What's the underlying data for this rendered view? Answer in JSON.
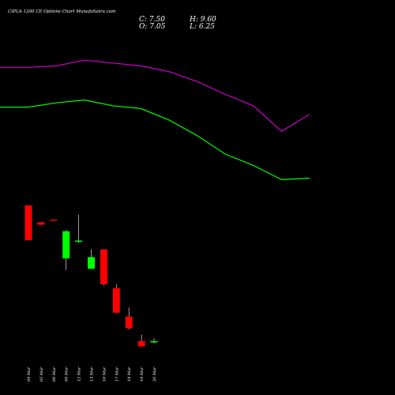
{
  "header": {
    "title": "CIPLA 1200 CE Options Chart MunafaSutra.com",
    "close": "C: 7.50",
    "open": "O: 7.05",
    "high": "H: 9.60",
    "low": "L: 6.25"
  },
  "colors": {
    "background": "#000000",
    "up": "#00ff00",
    "down": "#ff0000",
    "upper_line": "#00ff00",
    "lower_line": "#cc00cc",
    "text": "#ffffff"
  },
  "chart_data": [
    {
      "type": "line",
      "series": [
        {
          "values": [
            92,
            92,
            89,
            87,
            91,
            93,
            101,
            112,
            125,
            133,
            143,
            142
          ]
        },
        {
          "values": [
            64,
            64,
            63,
            59,
            61,
            63,
            67,
            74,
            83,
            91,
            109,
            97
          ]
        }
      ]
    },
    {
      "type": "candlestick",
      "categories": [
        "04 Mar",
        "05 Mar",
        "06 Mar",
        "09 Mar",
        "12 Mar",
        "13 Mar",
        "16 Mar",
        "17 Mar",
        "18 Mar",
        "19 Mar",
        "20 Mar"
      ],
      "ohlc": [
        {
          "open": 45.0,
          "high": 45.0,
          "low": 31.5,
          "close": 31.5
        },
        {
          "open": 38.5,
          "high": 38.5,
          "low": 37.5,
          "close": 37.5
        },
        {
          "open": 39.5,
          "high": 39.5,
          "low": 39.3,
          "close": 39.3
        },
        {
          "open": 24.5,
          "high": 35.5,
          "low": 20.0,
          "close": 35.0
        },
        {
          "open": 31.0,
          "high": 41.5,
          "low": 30.5,
          "close": 31.4
        },
        {
          "open": 20.5,
          "high": 28.0,
          "low": 20.5,
          "close": 25.0
        },
        {
          "open": 28.0,
          "high": 28.0,
          "low": 14.0,
          "close": 14.5
        },
        {
          "open": 13.0,
          "high": 14.5,
          "low": 3.5,
          "close": 3.5
        },
        {
          "open": 2.0,
          "high": 5.5,
          "low": -3.0,
          "close": -2.5
        },
        {
          "open": -7.5,
          "high": -5.0,
          "low": -9.5,
          "close": -9.5
        },
        {
          "open": -8.0,
          "high": -6.5,
          "low": -8.5,
          "close": -7.5
        }
      ]
    }
  ]
}
